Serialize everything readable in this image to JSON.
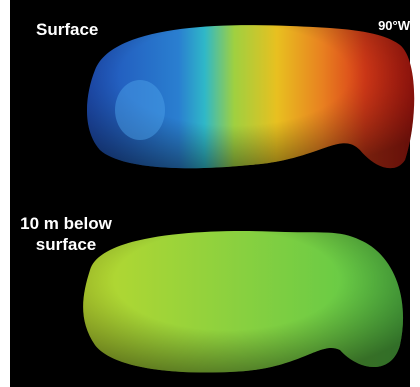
{
  "top_panel": {
    "label": "Surface",
    "view": "90°W"
  },
  "bottom_panel": {
    "label_lines": [
      "10 m below",
      "surface"
    ]
  }
}
